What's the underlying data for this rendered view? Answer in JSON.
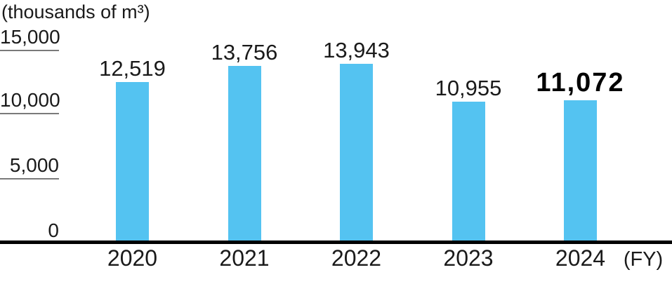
{
  "unit_label": "(thousands of m³)",
  "fy_label": "(FY)",
  "colors": {
    "bar": "#54C3F1",
    "axis": "#000000",
    "tick_line": "#7a7a7a",
    "text": "#1a1a1a"
  },
  "chart_data": {
    "type": "bar",
    "title": "(thousands of m³)",
    "xlabel": "(FY)",
    "ylabel": "thousands of m³",
    "categories": [
      "2020",
      "2021",
      "2022",
      "2023",
      "2024"
    ],
    "values": [
      12519,
      13756,
      13943,
      10955,
      11072
    ],
    "value_labels": [
      "12,519",
      "13,756",
      "13,943",
      "10,955",
      "11,072"
    ],
    "emphasized_index": 4,
    "ylim": [
      0,
      15000
    ],
    "yticks": [
      0,
      5000,
      10000,
      15000
    ],
    "ytick_labels": [
      "0",
      "5,000",
      "10,000",
      "15,000"
    ],
    "legend": false,
    "grid": "short left tick stubs only",
    "bar_color": "#54C3F1"
  }
}
